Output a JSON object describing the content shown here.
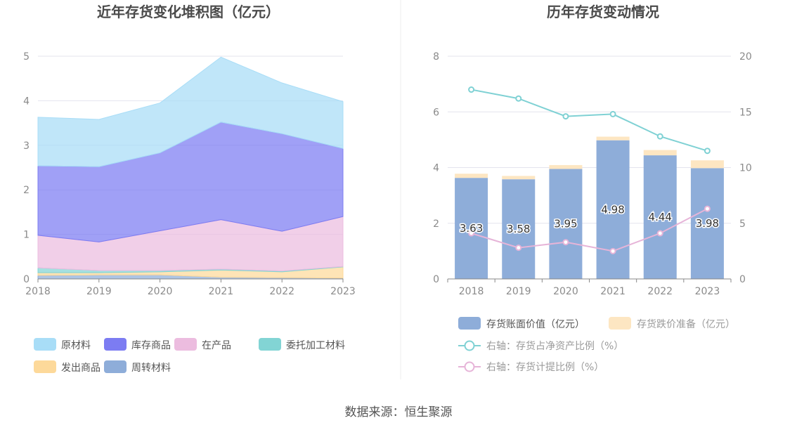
{
  "source_label": "数据来源：恒生聚源",
  "colors": {
    "raw": "#a8ddf7",
    "finished": "#7c7cf2",
    "wip": "#ecbcdf",
    "consigned": "#82d4d4",
    "shipped": "#fdd99a",
    "turnover": "#8eadd9",
    "bar_value": "#8eadd9",
    "bar_reserve": "#fde6c2",
    "line_net": "#7fd1d4",
    "line_ratio": "#e6b4d8",
    "grid": "#e3e3ee"
  },
  "chart_data": [
    {
      "type": "area",
      "title": "近年存货变化堆积图（亿元）",
      "x": [
        "2018",
        "2019",
        "2020",
        "2021",
        "2022",
        "2023"
      ],
      "ylim": [
        0,
        5
      ],
      "yticks": [
        "0",
        "1",
        "2",
        "3",
        "4",
        "5"
      ],
      "grid": true,
      "legend_position": "bottom",
      "series": [
        {
          "name": "周转材料",
          "color_key": "turnover",
          "values": [
            0.08,
            0.09,
            0.09,
            0.04,
            0.03,
            0.02
          ]
        },
        {
          "name": "发出商品",
          "color_key": "shipped",
          "values": [
            0.06,
            0.05,
            0.07,
            0.16,
            0.13,
            0.25
          ]
        },
        {
          "name": "委托加工材料",
          "color_key": "consigned",
          "values": [
            0.11,
            0.05,
            0.03,
            0.02,
            0.02,
            0.01
          ]
        },
        {
          "name": "在产品",
          "color_key": "wip",
          "values": [
            0.73,
            0.64,
            0.89,
            1.11,
            0.89,
            1.12
          ]
        },
        {
          "name": "库存商品",
          "color_key": "finished",
          "values": [
            1.56,
            1.69,
            1.75,
            2.19,
            2.19,
            1.53
          ]
        },
        {
          "name": "原材料",
          "color_key": "raw",
          "values": [
            1.09,
            1.06,
            1.12,
            1.46,
            1.14,
            1.05
          ]
        }
      ],
      "legend": [
        {
          "name": "原材料",
          "color_key": "raw"
        },
        {
          "name": "库存商品",
          "color_key": "finished"
        },
        {
          "name": "在产品",
          "color_key": "wip"
        },
        {
          "name": "委托加工材料",
          "color_key": "consigned"
        },
        {
          "name": "发出商品",
          "color_key": "shipped"
        },
        {
          "name": "周转材料",
          "color_key": "turnover"
        }
      ]
    },
    {
      "type": "bar",
      "title": "历年存货变动情况",
      "categories": [
        "2018",
        "2019",
        "2020",
        "2021",
        "2022",
        "2023"
      ],
      "ylim": [
        0,
        8
      ],
      "yticks": [
        "0",
        "2",
        "4",
        "6",
        "8"
      ],
      "y2lim": [
        0,
        20
      ],
      "y2ticks": [
        "0",
        "5",
        "10",
        "15",
        "20"
      ],
      "grid": true,
      "legend_position": "bottom",
      "series": [
        {
          "name": "存货账面价值（亿元）",
          "color_key": "bar_value",
          "values": [
            3.63,
            3.58,
            3.95,
            4.98,
            4.44,
            3.98
          ],
          "labels": [
            "3.63",
            "3.58",
            "3.95",
            "4.98",
            "4.44",
            "3.98"
          ]
        },
        {
          "name": "存货跌价准备（亿元）",
          "color_key": "bar_reserve",
          "values": [
            0.15,
            0.12,
            0.14,
            0.13,
            0.19,
            0.28
          ]
        },
        {
          "name": "右轴：存货占净资产比例（%）",
          "type": "line",
          "axis": "right",
          "color_key": "line_net",
          "values": [
            17.0,
            16.2,
            14.6,
            14.8,
            12.8,
            11.5
          ]
        },
        {
          "name": "右轴：存货计提比例（%）",
          "type": "line",
          "axis": "right",
          "color_key": "line_ratio",
          "values": [
            4.1,
            2.8,
            3.3,
            2.5,
            4.1,
            6.3
          ]
        }
      ]
    }
  ]
}
